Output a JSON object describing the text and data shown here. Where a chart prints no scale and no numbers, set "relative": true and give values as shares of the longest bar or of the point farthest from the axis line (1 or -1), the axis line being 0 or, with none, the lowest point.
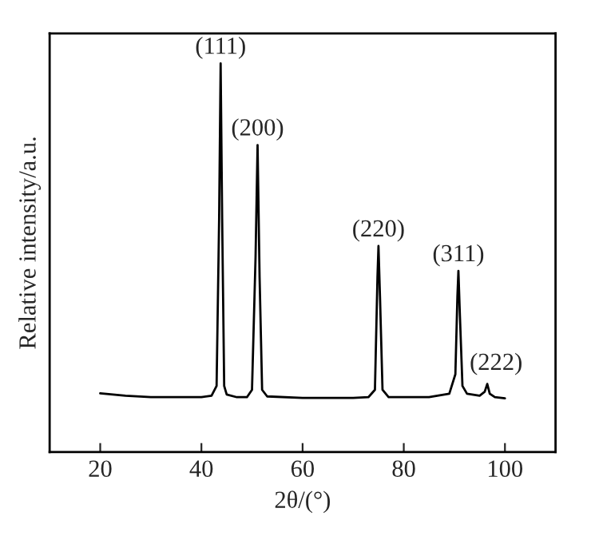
{
  "chart_data": {
    "type": "line",
    "relative": true,
    "xlabel": "2θ/(°)",
    "ylabel": "Relative intensity/a.u.",
    "xlim": [
      10,
      110
    ],
    "xticks": [
      20,
      40,
      60,
      80,
      100
    ],
    "color": "#000000",
    "x": [
      20,
      25,
      30,
      35,
      40,
      42,
      43,
      43.5,
      43.8,
      44.1,
      44.5,
      45,
      47,
      49,
      50,
      50.7,
      51.1,
      51.5,
      52,
      53,
      60,
      70,
      73,
      74.3,
      74.8,
      75.0,
      75.3,
      75.8,
      77,
      85,
      89,
      90.2,
      90.6,
      90.8,
      91.1,
      91.6,
      92.5,
      95,
      96,
      96.5,
      97,
      98,
      100
    ],
    "values": [
      0.151,
      0.145,
      0.141,
      0.141,
      0.141,
      0.145,
      0.17,
      0.6,
      1.0,
      0.6,
      0.17,
      0.148,
      0.141,
      0.141,
      0.16,
      0.5,
      0.79,
      0.45,
      0.16,
      0.143,
      0.139,
      0.139,
      0.141,
      0.16,
      0.45,
      0.53,
      0.4,
      0.16,
      0.141,
      0.141,
      0.15,
      0.2,
      0.4,
      0.466,
      0.35,
      0.17,
      0.15,
      0.145,
      0.155,
      0.175,
      0.15,
      0.141,
      0.138
    ],
    "annotations": [
      {
        "text": "(111)",
        "x": 43.8,
        "y": 1.0
      },
      {
        "text": "(200)",
        "x": 51.1,
        "y": 0.79
      },
      {
        "text": "(220)",
        "x": 75.0,
        "y": 0.53
      },
      {
        "text": "(311)",
        "x": 90.8,
        "y": 0.466
      },
      {
        "text": "(222)",
        "x": 96.5,
        "y": 0.175
      }
    ]
  }
}
